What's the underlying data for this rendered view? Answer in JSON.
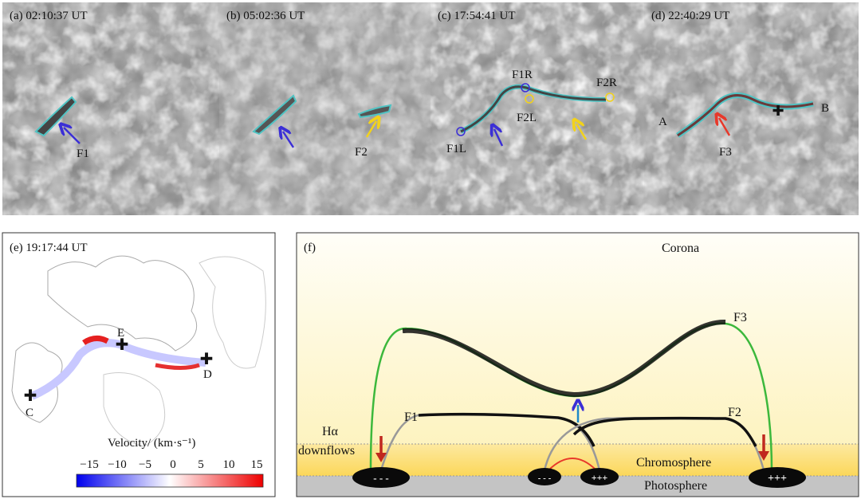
{
  "panels": {
    "a": {
      "label": "(a) 02:10:37 UT",
      "markers": [
        "F1"
      ]
    },
    "b": {
      "label": "(b) 05:02:36 UT",
      "markers": [
        "F2"
      ]
    },
    "c": {
      "label": "(c) 17:54:41 UT",
      "markers": [
        "F1R",
        "F2R",
        "F2L",
        "F1L"
      ]
    },
    "d": {
      "label": "(d) 22:40:29 UT",
      "markers": [
        "A",
        "B",
        "F3"
      ]
    },
    "e": {
      "label": "(e) 19:17:44 UT",
      "markers": [
        "E",
        "D",
        "C"
      ],
      "colorbar": {
        "title": "Velocity/ (km·s⁻¹)",
        "ticks": [
          "−15",
          "−10",
          "−5",
          "0",
          "5",
          "10",
          "15"
        ],
        "range": [
          -15,
          15
        ],
        "colors": {
          "low": "#0000ee",
          "mid": "#ffffff",
          "high": "#ee0000"
        }
      }
    },
    "f": {
      "label": "(f)",
      "corona": "Corona",
      "chromosphere": "Chromosphere",
      "photosphere": "Photosphere",
      "downflows_line1": "Hα",
      "downflows_line2": "downflows",
      "filaments": [
        "F1",
        "F2",
        "F3"
      ],
      "polarity_left": "- - -",
      "polarity_mid_neg": "- - -",
      "polarity_mid_pos": "+++",
      "polarity_right": "+++"
    }
  },
  "colors": {
    "filament_outline": "#4fc3c3",
    "arrow_blue": "#3b2fd6",
    "arrow_yellow": "#f2d21b",
    "arrow_red": "#e8382a",
    "green_loop": "#3cb83c"
  }
}
